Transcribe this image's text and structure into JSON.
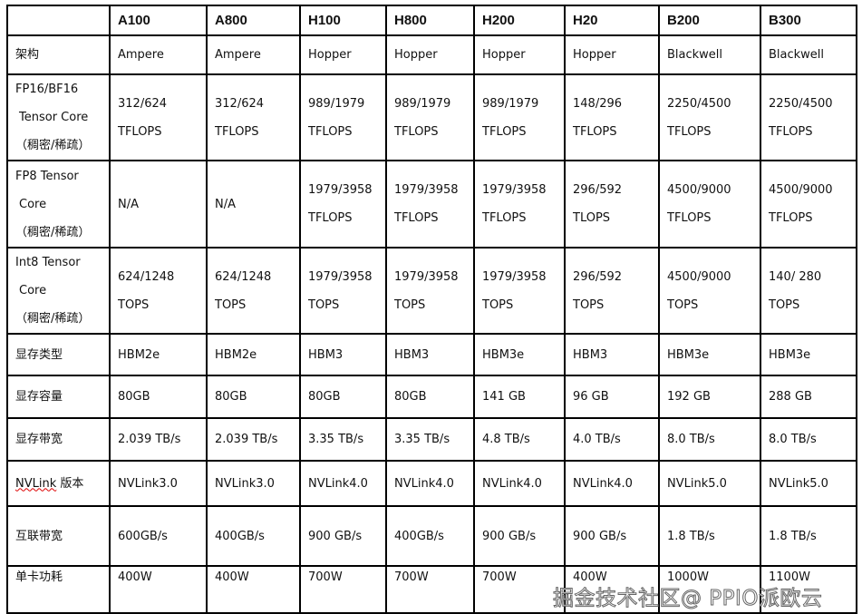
{
  "headers": [
    "",
    "A100",
    "A800",
    "H100",
    "H800",
    "H200",
    "H20",
    "B200",
    "B300"
  ],
  "rows": [
    {
      "label": [
        "架构"
      ],
      "cells": [
        [
          "Ampere"
        ],
        [
          "Ampere"
        ],
        [
          "Hopper"
        ],
        [
          "Hopper"
        ],
        [
          "Hopper"
        ],
        [
          "Hopper"
        ],
        [
          "Blackwell"
        ],
        [
          "Blackwell"
        ]
      ]
    },
    {
      "label": [
        "FP16/BF16",
        "Tensor Core",
        "（稠密/稀疏）"
      ],
      "cells": [
        [
          "312/624",
          "TFLOPS"
        ],
        [
          "312/624",
          "TFLOPS"
        ],
        [
          "989/1979",
          "TFLOPS"
        ],
        [
          "989/1979",
          "TFLOPS"
        ],
        [
          "989/1979",
          "TFLOPS"
        ],
        [
          "148/296",
          "TFLOPS"
        ],
        [
          "2250/4500",
          "TFLOPS"
        ],
        [
          "2250/4500",
          "TFLOPS"
        ]
      ]
    },
    {
      "label": [
        "FP8 Tensor",
        "Core",
        "（稠密/稀疏）"
      ],
      "cells": [
        [
          "N/A"
        ],
        [
          "N/A"
        ],
        [
          "1979/3958",
          "TFLOPS"
        ],
        [
          "1979/3958",
          "TFLOPS"
        ],
        [
          "1979/3958",
          "TFLOPS"
        ],
        [
          "296/592",
          "TLOPS"
        ],
        [
          "4500/9000",
          "TFLOPS"
        ],
        [
          "4500/9000",
          "TFLOPS"
        ]
      ]
    },
    {
      "label": [
        "Int8 Tensor",
        "Core",
        "（稠密/稀疏）"
      ],
      "cells": [
        [
          "624/1248",
          "TOPS"
        ],
        [
          "624/1248",
          "TOPS"
        ],
        [
          "1979/3958",
          "TOPS"
        ],
        [
          "1979/3958",
          "TOPS"
        ],
        [
          "1979/3958",
          "TOPS"
        ],
        [
          "296/592",
          "TOPS"
        ],
        [
          "4500/9000",
          "TOPS"
        ],
        [
          "140/ 280",
          "TOPS"
        ]
      ]
    },
    {
      "label": [
        "显存类型"
      ],
      "cells": [
        [
          "HBM2e"
        ],
        [
          "HBM2e"
        ],
        [
          "HBM3"
        ],
        [
          "HBM3"
        ],
        [
          "HBM3e"
        ],
        [
          "HBM3"
        ],
        [
          "HBM3e"
        ],
        [
          "HBM3e"
        ]
      ]
    },
    {
      "label": [
        "显存容量"
      ],
      "cells": [
        [
          "80GB"
        ],
        [
          "80GB"
        ],
        [
          "80GB"
        ],
        [
          "80GB"
        ],
        [
          "141 GB"
        ],
        [
          "96 GB"
        ],
        [
          "192 GB"
        ],
        [
          "288 GB"
        ]
      ]
    },
    {
      "label": [
        "显存带宽"
      ],
      "cells": [
        [
          "2.039 TB/s"
        ],
        [
          "2.039 TB/s"
        ],
        [
          "3.35 TB/s"
        ],
        [
          "3.35 TB/s"
        ],
        [
          "4.8 TB/s"
        ],
        [
          "4.0 TB/s"
        ],
        [
          "8.0 TB/s"
        ],
        [
          "8.0 TB/s"
        ]
      ]
    },
    {
      "label": [
        "NVLink 版本"
      ],
      "cells": [
        [
          "NVLink3.0"
        ],
        [
          "NVLink3.0"
        ],
        [
          "NVLink4.0"
        ],
        [
          "NVLink4.0"
        ],
        [
          "NVLink4.0"
        ],
        [
          "NVLink4.0"
        ],
        [
          "NVLink5.0"
        ],
        [
          "NVLink5.0"
        ]
      ]
    },
    {
      "label": [
        "互联带宽"
      ],
      "cells": [
        [
          "600GB/s"
        ],
        [
          "400GB/s"
        ],
        [
          "900 GB/s"
        ],
        [
          "400GB/s"
        ],
        [
          "900 GB/s"
        ],
        [
          "900 GB/s"
        ],
        [
          "1.8 TB/s"
        ],
        [
          "1.8 TB/s"
        ]
      ]
    },
    {
      "label": [
        "单卡功耗"
      ],
      "cells": [
        [
          "400W"
        ],
        [
          "400W"
        ],
        [
          "700W"
        ],
        [
          "700W"
        ],
        [
          "700W"
        ],
        [
          "400W"
        ],
        [
          "1000W"
        ],
        [
          "1100W"
        ]
      ]
    }
  ],
  "watermark": "掘金技术社区@ PPIO派欧云"
}
